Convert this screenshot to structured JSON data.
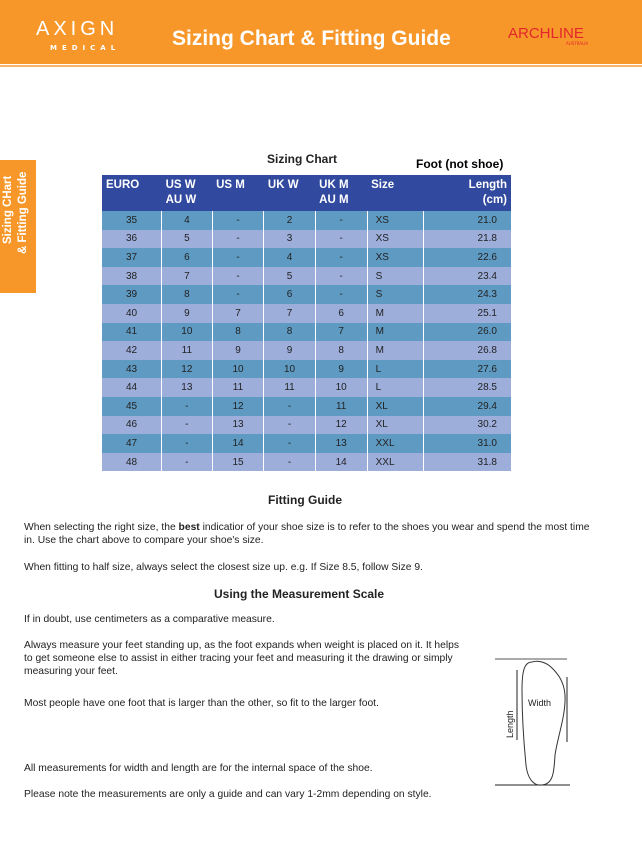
{
  "header": {
    "logo_left": "AXIGN",
    "logo_left_sub": "MEDICAL",
    "title": "Sizing Chart & Fitting Guide",
    "logo_right": "ARCHLINE",
    "logo_right_sub": "AUSTRALIA"
  },
  "side_tab": {
    "line1": "Sizing CHart",
    "line2": "& Fitting Guide"
  },
  "chart": {
    "title": "Sizing Chart",
    "note": "Foot (not shoe)",
    "columns": [
      [
        "EURO",
        ""
      ],
      [
        "US W",
        "AU W"
      ],
      [
        "US M",
        ""
      ],
      [
        "UK W",
        ""
      ],
      [
        "UK M",
        "AU M"
      ],
      [
        "Size",
        ""
      ],
      [
        "Length",
        "(cm)"
      ]
    ],
    "rows": [
      [
        "35",
        "4",
        "-",
        "2",
        "-",
        "XS",
        "21.0"
      ],
      [
        "36",
        "5",
        "-",
        "3",
        "-",
        "XS",
        "21.8"
      ],
      [
        "37",
        "6",
        "-",
        "4",
        "-",
        "XS",
        "22.6"
      ],
      [
        "38",
        "7",
        "-",
        "5",
        "-",
        "S",
        "23.4"
      ],
      [
        "39",
        "8",
        "-",
        "6",
        "-",
        "S",
        "24.3"
      ],
      [
        "40",
        "9",
        "7",
        "7",
        "6",
        "M",
        "25.1"
      ],
      [
        "41",
        "10",
        "8",
        "8",
        "7",
        "M",
        "26.0"
      ],
      [
        "42",
        "11",
        "9",
        "9",
        "8",
        "M",
        "26.8"
      ],
      [
        "43",
        "12",
        "10",
        "10",
        "9",
        "L",
        "27.6"
      ],
      [
        "44",
        "13",
        "11",
        "11",
        "10",
        "L",
        "28.5"
      ],
      [
        "45",
        "-",
        "12",
        "-",
        "11",
        "XL",
        "29.4"
      ],
      [
        "46",
        "-",
        "13",
        "-",
        "12",
        "XL",
        "30.2"
      ],
      [
        "47",
        "-",
        "14",
        "-",
        "13",
        "XXL",
        "31.0"
      ],
      [
        "48",
        "-",
        "15",
        "-",
        "14",
        "XXL",
        "31.8"
      ]
    ]
  },
  "fitting": {
    "title": "Fitting Guide",
    "p1a": "When selecting the right size, the ",
    "p1b": "best",
    "p1c": " indicatior of your shoe size is to refer to the shoes you wear and spend the most time in. Use the chart above to compare your shoe's size.",
    "p2": "When fitting to half size, always select the closest size up. e.g. If Size 8.5, follow Size 9."
  },
  "measure": {
    "title": "Using the Measurement Scale",
    "p1": "If in doubt, use centimeters as a comparative measure.",
    "p2": "Always measure your feet standing up, as the foot expands when weight is placed on it. It helps to get someone else to assist in either tracing your feet and measuring it the drawing or simply measuring your feet.",
    "p3": "Most people have one foot that is larger than the other, so fit to the larger foot.",
    "p4": "All measurements for width and length are for the internal space of the shoe.",
    "p5": "Please note the measurements are only a guide and can vary 1-2mm depending on style.",
    "diagram_width": "Width",
    "diagram_length": "Length"
  }
}
